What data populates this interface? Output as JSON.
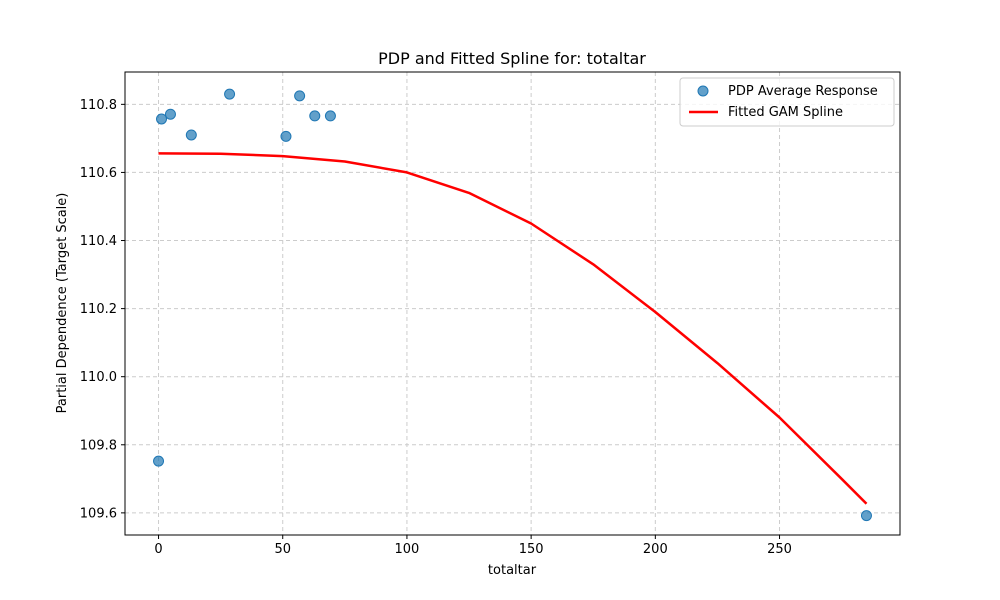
{
  "chart_data": {
    "type": "scatter",
    "title": "PDP and Fitted Spline for: totaltar",
    "xlabel": "totaltar",
    "ylabel": "Partial Dependence (Target Scale)",
    "xlim": [
      -13.5,
      298.5
    ],
    "ylim": [
      109.535,
      110.895
    ],
    "x_ticks": [
      0,
      50,
      100,
      150,
      200,
      250
    ],
    "y_ticks": [
      109.6,
      109.8,
      110.0,
      110.2,
      110.4,
      110.6,
      110.8
    ],
    "x_tick_labels": [
      "0",
      "50",
      "100",
      "150",
      "200",
      "250"
    ],
    "y_tick_labels": [
      "109.6",
      "109.8",
      "110.0",
      "110.2",
      "110.4",
      "110.6",
      "110.8"
    ],
    "grid": true,
    "legend_position": "top-right",
    "series": [
      {
        "name": "PDP Average Response",
        "kind": "scatter",
        "color": "#1f77b4",
        "points": [
          {
            "x": 0,
            "y": 109.752
          },
          {
            "x": 1.2,
            "y": 110.757
          },
          {
            "x": 4.8,
            "y": 110.771
          },
          {
            "x": 13.2,
            "y": 110.71
          },
          {
            "x": 28.6,
            "y": 110.83
          },
          {
            "x": 51.3,
            "y": 110.706
          },
          {
            "x": 56.8,
            "y": 110.825
          },
          {
            "x": 62.9,
            "y": 110.766
          },
          {
            "x": 69.2,
            "y": 110.766
          },
          {
            "x": 285,
            "y": 109.592
          }
        ]
      },
      {
        "name": "Fitted GAM Spline",
        "kind": "line",
        "color": "#ff0000",
        "points": [
          {
            "x": 0,
            "y": 110.656
          },
          {
            "x": 25,
            "y": 110.655
          },
          {
            "x": 50,
            "y": 110.648
          },
          {
            "x": 75,
            "y": 110.632
          },
          {
            "x": 100,
            "y": 110.6
          },
          {
            "x": 125,
            "y": 110.54
          },
          {
            "x": 150,
            "y": 110.45
          },
          {
            "x": 175,
            "y": 110.33
          },
          {
            "x": 200,
            "y": 110.19
          },
          {
            "x": 225,
            "y": 110.04
          },
          {
            "x": 250,
            "y": 109.88
          },
          {
            "x": 275,
            "y": 109.7
          },
          {
            "x": 285,
            "y": 109.627
          }
        ]
      }
    ]
  }
}
